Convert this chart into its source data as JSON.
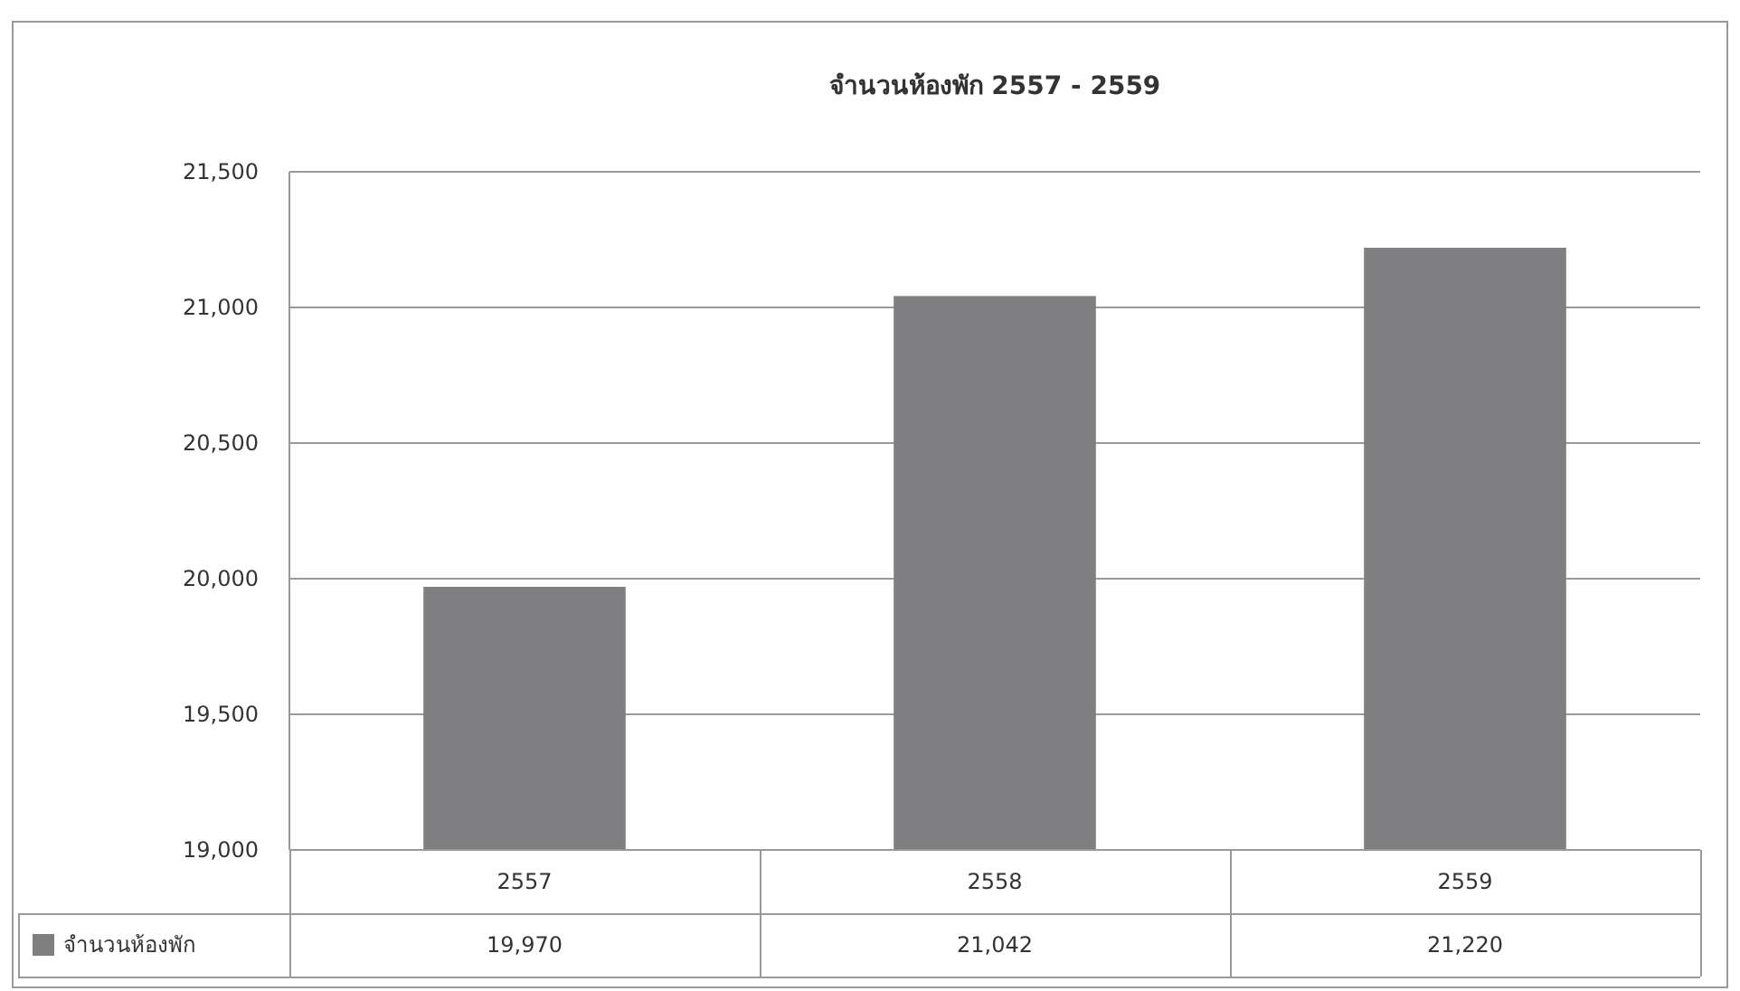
{
  "chart_data": {
    "type": "bar",
    "title": "จำนวนห้องพัก 2557 - 2559",
    "categories": [
      "2557",
      "2558",
      "2559"
    ],
    "series": [
      {
        "name": "จำนวนห้องพัก",
        "color": "#7f7f81",
        "values": [
          19970,
          21042,
          21220
        ],
        "value_labels": [
          "19,970",
          "21,042",
          "21,220"
        ]
      }
    ],
    "ylim": [
      19000,
      21500
    ],
    "yticks": [
      {
        "value": 19000,
        "label": "19,000"
      },
      {
        "value": 19500,
        "label": "19,500"
      },
      {
        "value": 20000,
        "label": "20,000"
      },
      {
        "value": 20500,
        "label": "20,500"
      },
      {
        "value": 21000,
        "label": "21,000"
      },
      {
        "value": 21500,
        "label": "21,500"
      }
    ],
    "grid": "y",
    "legend": "bottom left"
  }
}
